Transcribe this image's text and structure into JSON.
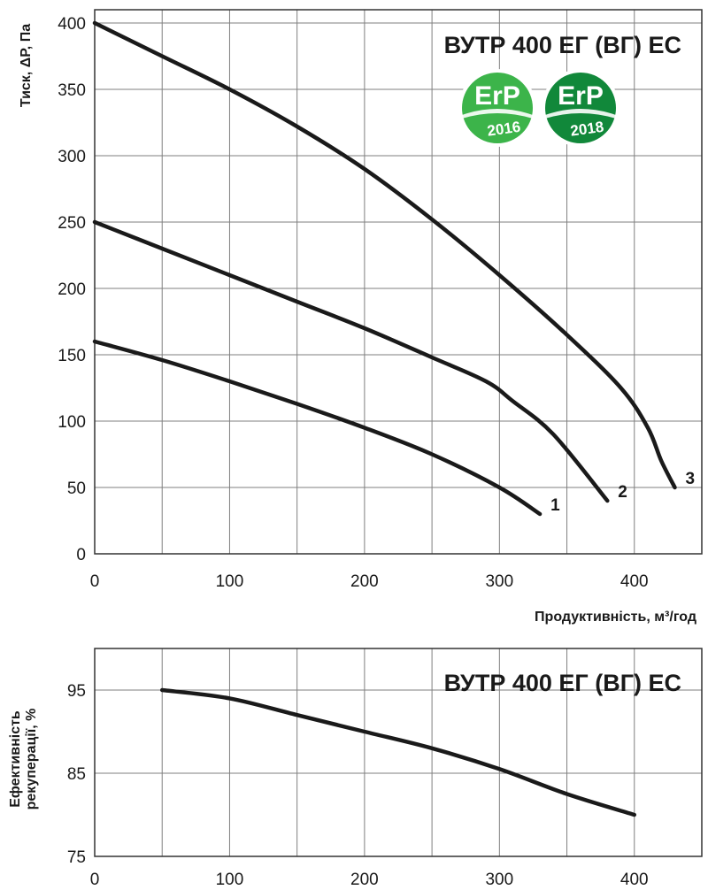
{
  "colors": {
    "curve": "#1a1a1a",
    "grid": "#7f7f7f",
    "badge_light": "#3cb44a",
    "badge_dark": "#11883a"
  },
  "badges": [
    {
      "name": "erp-2016-badge",
      "line1": "ErP",
      "line2": "2016",
      "color": "#3cb44a"
    },
    {
      "name": "erp-2018-badge",
      "line1": "ErP",
      "line2": "2018",
      "color": "#11883a"
    }
  ],
  "chart_data": [
    {
      "type": "line",
      "title": "ВУТР 400 ЕГ (ВГ) ЕС",
      "xlabel": "Продуктивність, м³/год",
      "ylabel": "Тиск,  ΔP, Па",
      "xlim": [
        0,
        450
      ],
      "ylim": [
        0,
        410
      ],
      "xticks": [
        0,
        100,
        200,
        300,
        400
      ],
      "yticks": [
        0,
        50,
        100,
        150,
        200,
        250,
        300,
        350,
        400
      ],
      "grid": true,
      "series": [
        {
          "name": "1",
          "x": [
            0,
            50,
            100,
            150,
            200,
            250,
            300,
            330
          ],
          "y": [
            160,
            146,
            130,
            113,
            95,
            75,
            50,
            30
          ]
        },
        {
          "name": "2",
          "x": [
            0,
            50,
            100,
            150,
            200,
            250,
            290,
            310,
            340,
            380
          ],
          "y": [
            250,
            230,
            210,
            190,
            170,
            148,
            130,
            115,
            90,
            40
          ]
        },
        {
          "name": "3",
          "x": [
            0,
            50,
            100,
            150,
            200,
            250,
            300,
            350,
            390,
            410,
            420,
            430
          ],
          "y": [
            400,
            375,
            350,
            322,
            290,
            252,
            210,
            165,
            125,
            95,
            70,
            50
          ]
        }
      ]
    },
    {
      "type": "line",
      "title": "ВУТР 400 ЕГ (ВГ) ЕС",
      "xlabel": "",
      "ylabel": "Ефективність рекуперації, %",
      "xlim": [
        0,
        450
      ],
      "ylim": [
        75,
        100
      ],
      "xticks": [
        0,
        100,
        200,
        300,
        400
      ],
      "yticks": [
        75,
        85,
        95
      ],
      "grid": true,
      "series": [
        {
          "x": [
            50,
            100,
            150,
            200,
            250,
            300,
            350,
            400
          ],
          "y": [
            95,
            94,
            92,
            90,
            88,
            85.5,
            82.5,
            80
          ]
        }
      ]
    }
  ]
}
